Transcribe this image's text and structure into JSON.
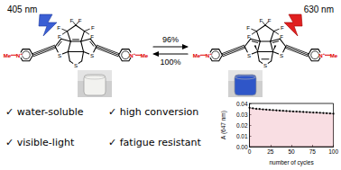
{
  "scheme": {
    "forward": {
      "light": "405 nm",
      "yield": "96%"
    },
    "backward": {
      "light": "630 nm",
      "yield": "100%"
    },
    "open_form": {
      "atoms": [
        "F",
        "F",
        "F",
        "F",
        "F",
        "F",
        "S",
        "S",
        "S",
        "Me",
        "N+",
        "N+",
        "Me"
      ]
    },
    "closed_form": {
      "atoms": [
        "F",
        "F",
        "F",
        "F",
        "F",
        "F",
        "S",
        "S",
        "S",
        "Me",
        "N+",
        "N+",
        "Me"
      ]
    }
  },
  "checklist": [
    "✓ water-soluble",
    "✓ high conversion",
    "✓ visible-light",
    "✓ fatigue resistant"
  ],
  "chart_data": {
    "type": "line",
    "xlabel": "number of cycles",
    "ylabel": "A (647 nm)",
    "x": [
      0,
      4,
      8,
      12,
      16,
      20,
      24,
      28,
      32,
      36,
      40,
      44,
      48,
      52,
      56,
      60,
      64,
      68,
      72,
      76,
      80,
      84,
      88,
      92,
      96,
      100
    ],
    "series": [
      {
        "color": "#000000",
        "marker": "circle",
        "values": [
          0.036,
          0.0355,
          0.035,
          0.0348,
          0.0345,
          0.0343,
          0.034,
          0.0338,
          0.0336,
          0.0334,
          0.0332,
          0.033,
          0.0328,
          0.0326,
          0.0325,
          0.0323,
          0.0321,
          0.032,
          0.0318,
          0.0316,
          0.0315,
          0.0313,
          0.0311,
          0.031,
          0.0308,
          0.0305
        ]
      }
    ],
    "xlim": [
      0,
      100
    ],
    "ylim": [
      0,
      0.04
    ],
    "xticks": [
      0,
      25,
      50,
      75,
      100
    ],
    "yticks": [
      {
        "value": 0,
        "label": "0.00"
      },
      0.01,
      0.02,
      0.03,
      0.04
    ],
    "grid": false
  }
}
